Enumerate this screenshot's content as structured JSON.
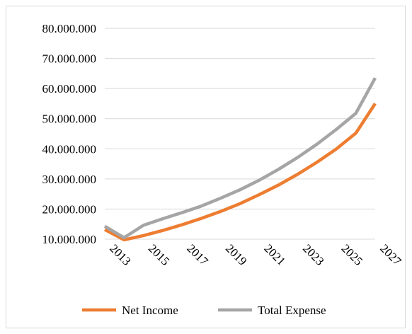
{
  "chart_data": {
    "type": "line",
    "x": [
      2013,
      2014,
      2015,
      2016,
      2017,
      2018,
      2019,
      2020,
      2021,
      2022,
      2023,
      2024,
      2025,
      2026,
      2027
    ],
    "x_tick_labels": [
      "2013",
      "2015",
      "2017",
      "2019",
      "2021",
      "2023",
      "2025",
      "2027"
    ],
    "y_tick_labels": [
      "10.000.000",
      "20.000.000",
      "30.000.000",
      "40.000.000",
      "50.000.000",
      "60.000.000",
      "70.000.000",
      "80.000.000"
    ],
    "ylim": [
      10000000,
      80000000
    ],
    "grid": true,
    "legend_position": "bottom",
    "series": [
      {
        "name": "Net Income",
        "color": "#ed7d31",
        "values": [
          13200000,
          9800000,
          11200000,
          12900000,
          14800000,
          16900000,
          19200000,
          21800000,
          24800000,
          28000000,
          31600000,
          35600000,
          40000000,
          45200000,
          55000000
        ]
      },
      {
        "name": "Total Expense",
        "color": "#a5a5a5",
        "values": [
          14300000,
          10500000,
          14600000,
          16800000,
          18800000,
          21000000,
          23600000,
          26400000,
          29600000,
          33200000,
          37200000,
          41600000,
          46500000,
          51800000,
          63500000
        ]
      }
    ]
  }
}
